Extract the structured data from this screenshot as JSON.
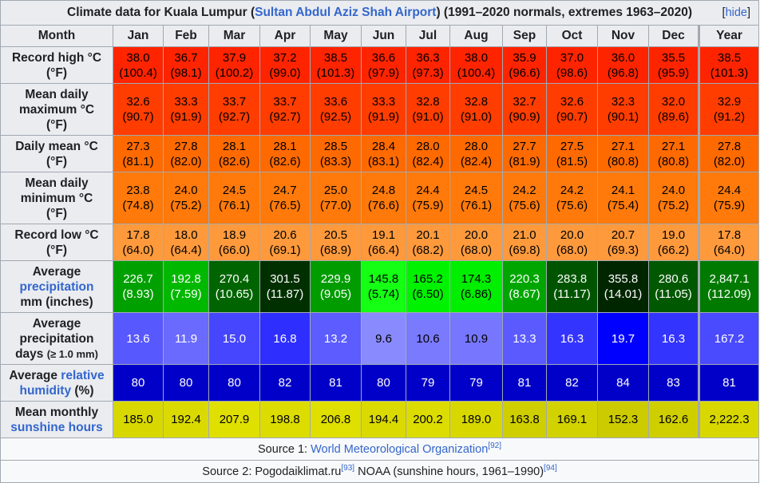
{
  "caption": {
    "prefix": "Climate data for Kuala Lumpur (",
    "link": "Sultan Abdul Aziz Shah Airport",
    "suffix": ") (1991–2020 normals, extremes 1963–2020)",
    "hide_open": "[",
    "hide_label": "hide",
    "hide_close": "]"
  },
  "header": {
    "month_label": "Month",
    "months": [
      "Jan",
      "Feb",
      "Mar",
      "Apr",
      "May",
      "Jun",
      "Jul",
      "Aug",
      "Sep",
      "Oct",
      "Nov",
      "Dec"
    ],
    "year_label": "Year"
  },
  "rows": {
    "record_high": {
      "label_line1": "Record high °C",
      "label_line2": "(°F)",
      "c": [
        "38.0",
        "36.7",
        "37.9",
        "37.2",
        "38.5",
        "36.6",
        "36.3",
        "38.0",
        "35.9",
        "37.0",
        "36.0",
        "35.5",
        "38.5"
      ],
      "f": [
        "(100.4)",
        "(98.1)",
        "(100.2)",
        "(99.0)",
        "(101.3)",
        "(97.9)",
        "(97.3)",
        "(100.4)",
        "(96.6)",
        "(98.6)",
        "(96.8)",
        "(95.9)",
        "(101.3)"
      ],
      "color": "#ff2400"
    },
    "mean_max": {
      "label_line1": "Mean daily",
      "label_line2": "maximum °C",
      "label_line3": "(°F)",
      "c": [
        "32.6",
        "33.3",
        "33.7",
        "33.7",
        "33.6",
        "33.3",
        "32.8",
        "32.8",
        "32.7",
        "32.6",
        "32.3",
        "32.0",
        "32.9"
      ],
      "f": [
        "(90.7)",
        "(91.9)",
        "(92.7)",
        "(92.7)",
        "(92.5)",
        "(91.9)",
        "(91.0)",
        "(91.0)",
        "(90.9)",
        "(90.7)",
        "(90.1)",
        "(89.6)",
        "(91.2)"
      ],
      "color": "#ff3d00"
    },
    "daily_mean": {
      "label_line1": "Daily mean °C",
      "label_line2": "(°F)",
      "c": [
        "27.3",
        "27.8",
        "28.1",
        "28.1",
        "28.5",
        "28.4",
        "28.0",
        "28.0",
        "27.7",
        "27.5",
        "27.1",
        "27.1",
        "27.8"
      ],
      "f": [
        "(81.1)",
        "(82.0)",
        "(82.6)",
        "(82.6)",
        "(83.3)",
        "(83.1)",
        "(82.4)",
        "(82.4)",
        "(81.9)",
        "(81.5)",
        "(80.8)",
        "(80.8)",
        "(82.0)"
      ],
      "color": "#ff6a00"
    },
    "mean_min": {
      "label_line1": "Mean daily",
      "label_line2": "minimum °C",
      "label_line3": "(°F)",
      "c": [
        "23.8",
        "24.0",
        "24.5",
        "24.7",
        "25.0",
        "24.8",
        "24.4",
        "24.5",
        "24.2",
        "24.2",
        "24.1",
        "24.0",
        "24.4"
      ],
      "f": [
        "(74.8)",
        "(75.2)",
        "(76.1)",
        "(76.5)",
        "(77.0)",
        "(76.6)",
        "(75.9)",
        "(76.1)",
        "(75.6)",
        "(75.6)",
        "(75.4)",
        "(75.2)",
        "(75.9)"
      ],
      "color": "#ff7a0a"
    },
    "record_low": {
      "label_line1": "Record low °C",
      "label_line2": "(°F)",
      "c": [
        "17.8",
        "18.0",
        "18.9",
        "20.6",
        "20.5",
        "19.1",
        "20.1",
        "20.0",
        "21.0",
        "20.0",
        "20.7",
        "19.0",
        "17.8"
      ],
      "f": [
        "(64.0)",
        "(64.4)",
        "(66.0)",
        "(69.1)",
        "(68.9)",
        "(66.4)",
        "(68.2)",
        "(68.0)",
        "(69.8)",
        "(68.0)",
        "(69.3)",
        "(66.2)",
        "(64.0)"
      ],
      "color": "#ff9a3c"
    },
    "precip": {
      "label_line1": "Average",
      "label_link": "precipitation",
      "label_line3": "mm (inches)",
      "mm": [
        "226.7",
        "192.8",
        "270.4",
        "301.5",
        "229.9",
        "145.8",
        "165.2",
        "174.3",
        "220.3",
        "283.8",
        "355.8",
        "280.6",
        "2,847.1"
      ],
      "in": [
        "(8.93)",
        "(7.59)",
        "(10.65)",
        "(11.87)",
        "(9.05)",
        "(5.74)",
        "(6.50)",
        "(6.86)",
        "(8.67)",
        "(11.17)",
        "(14.01)",
        "(11.05)",
        "(112.09)"
      ],
      "colors": [
        "#00a000",
        "#00b800",
        "#006400",
        "#003000",
        "#009c00",
        "#14ff14",
        "#00f200",
        "#00ee00",
        "#00a600",
        "#005400",
        "#002600",
        "#005800",
        "#007a00"
      ],
      "text_colors": [
        "#ffffff",
        "#ffffff",
        "#ffffff",
        "#ffffff",
        "#ffffff",
        "#000000",
        "#000000",
        "#000000",
        "#ffffff",
        "#ffffff",
        "#ffffff",
        "#ffffff",
        "#ffffff"
      ]
    },
    "precip_days": {
      "label_line1": "Average",
      "label_line2": "precipitation",
      "label_line3": "days",
      "label_small": "(≥ 1.0 mm)",
      "values": [
        "13.6",
        "11.9",
        "15.0",
        "16.8",
        "13.2",
        "9.6",
        "10.6",
        "10.9",
        "13.3",
        "16.3",
        "19.7",
        "16.3",
        "167.2"
      ],
      "colors": [
        "#5858ff",
        "#6a6aff",
        "#4646ff",
        "#2e2eff",
        "#5c5cff",
        "#8a8aff",
        "#7a7aff",
        "#7676ff",
        "#5a5aff",
        "#3434ff",
        "#0000ff",
        "#3434ff",
        "#4a4aff"
      ],
      "text_colors": [
        "#ffffff",
        "#ffffff",
        "#ffffff",
        "#ffffff",
        "#ffffff",
        "#000000",
        "#000000",
        "#000000",
        "#ffffff",
        "#ffffff",
        "#ffffff",
        "#ffffff",
        "#ffffff"
      ]
    },
    "humidity": {
      "label_pre": "Average ",
      "label_link1": "relative",
      "label_link2": "humidity",
      "label_post": " (%)",
      "values": [
        "80",
        "80",
        "80",
        "82",
        "81",
        "80",
        "79",
        "79",
        "81",
        "82",
        "84",
        "83",
        "81"
      ],
      "color": "#0000c8"
    },
    "sunshine": {
      "label_line1": "Mean monthly",
      "label_link": "sunshine hours",
      "values": [
        "185.0",
        "192.4",
        "207.9",
        "198.8",
        "206.8",
        "194.4",
        "200.2",
        "189.0",
        "163.8",
        "169.1",
        "152.3",
        "162.6",
        "2,222.3"
      ],
      "colors": [
        "#d8d800",
        "#dada00",
        "#e0e000",
        "#dcdc00",
        "#dfdf00",
        "#dada00",
        "#dcdc00",
        "#d8d800",
        "#cfcf00",
        "#d2d200",
        "#cbcb00",
        "#cfcf00",
        "#d8d800"
      ]
    }
  },
  "sources": {
    "source1_prefix": "Source 1: ",
    "source1_link": "World Meteorological Organization",
    "source1_ref": "[92]",
    "source2_prefix": "Source 2: Pogodaiklimat.ru",
    "source2_ref1": "[93]",
    "source2_mid": " NOAA (sunshine hours, 1961–1990)",
    "source2_ref2": "[94]"
  }
}
